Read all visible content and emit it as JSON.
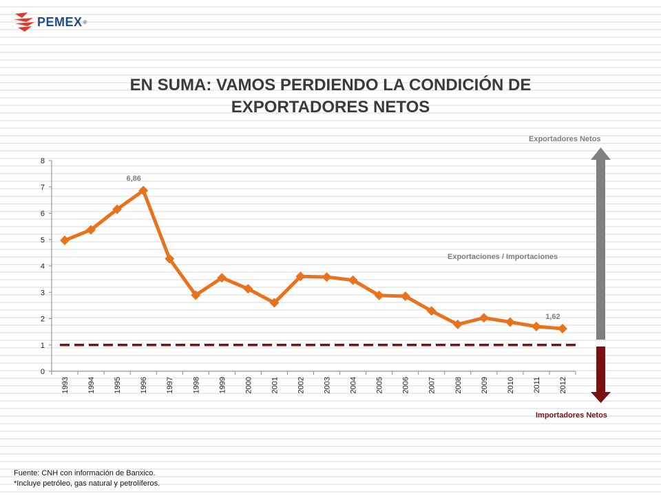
{
  "logo": {
    "name": "PEMEX",
    "registered": "®",
    "icon": "pemex-eagle-icon",
    "color": "#e03a2b"
  },
  "title": {
    "line1": "EN SUMA: VAMOS PERDIENDO LA CONDICIÓN DE",
    "line2": "EXPORTADORES NETOS"
  },
  "chart_data": {
    "type": "line",
    "title": "",
    "xlabel": "",
    "ylabel": "",
    "categories": [
      "1993",
      "1994",
      "1995",
      "1996",
      "1997",
      "1998",
      "1999",
      "2000",
      "2001",
      "2002",
      "2003",
      "2004",
      "2005",
      "2006",
      "2007",
      "2008",
      "2009",
      "2010",
      "2011",
      "2012"
    ],
    "series": [
      {
        "name": "Exportaciones / Importaciones",
        "values": [
          4.97,
          5.37,
          6.15,
          6.86,
          4.27,
          2.89,
          3.55,
          3.13,
          2.6,
          3.6,
          3.58,
          3.46,
          2.88,
          2.85,
          2.29,
          1.78,
          2.03,
          1.87,
          1.7,
          1.62
        ],
        "color": "#e8731e"
      }
    ],
    "data_labels": [
      {
        "category": "1996",
        "text": "6,86"
      },
      {
        "category": "2012",
        "text": "1,62"
      }
    ],
    "reference_line": {
      "value": 1,
      "style": "dashed",
      "color": "#7a1010"
    },
    "ylim": [
      0,
      8
    ],
    "yticks": [
      "0",
      "1",
      "2",
      "3",
      "4",
      "5",
      "6",
      "7",
      "8"
    ],
    "grid": false,
    "legend": "none"
  },
  "annotations": {
    "exportadores": "Exportadores Netos",
    "importadores": "Importadores Netos",
    "ratio": "Exportaciones / Importaciones",
    "up_arrow_color": "#808080",
    "down_arrow_color": "#7a1010"
  },
  "source": {
    "line1": "Fuente: CNH con información de Banxico.",
    "line2": "*Incluye petróleo, gas natural y petrolíferos."
  }
}
